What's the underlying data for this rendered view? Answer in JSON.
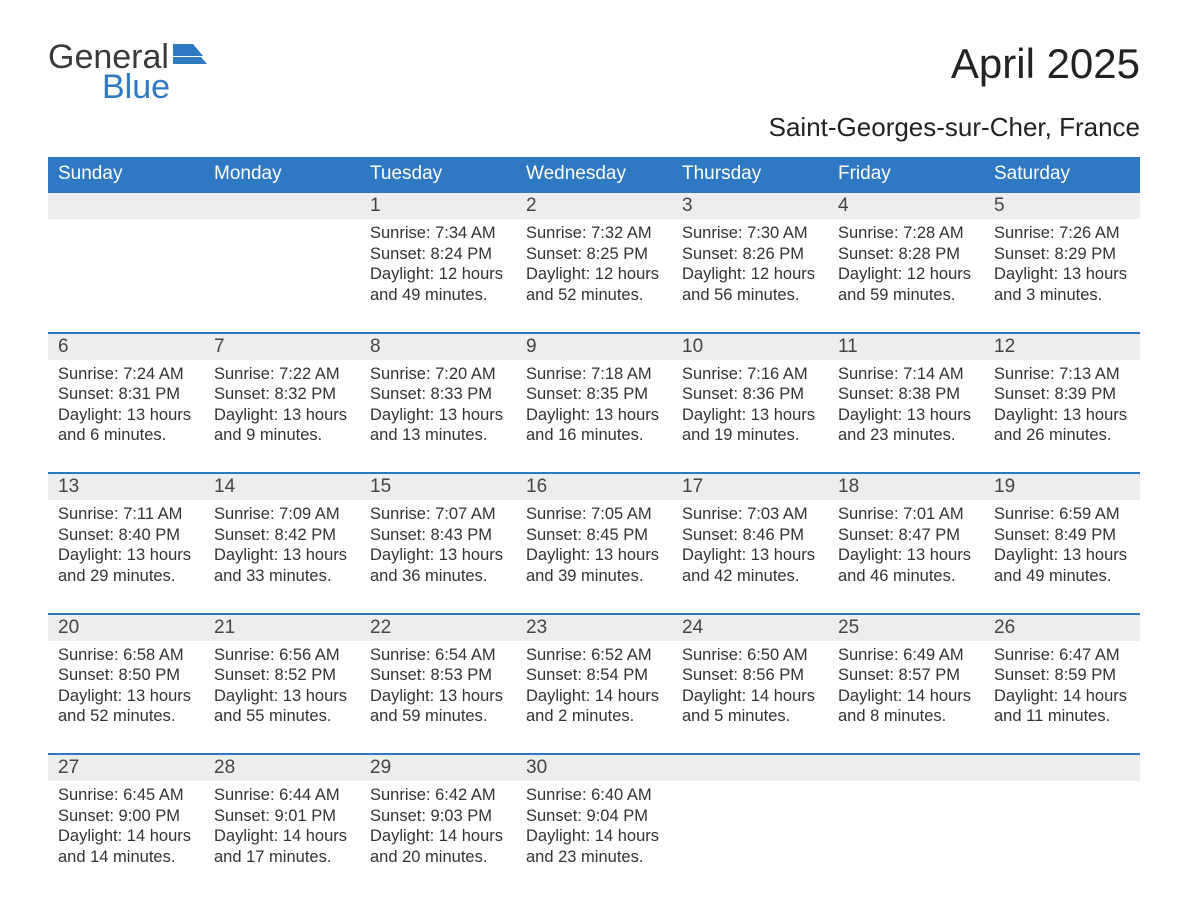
{
  "logo": {
    "word1": "General",
    "word2": "Blue"
  },
  "title": "April 2025",
  "subtitle": "Saint-Georges-sur-Cher, France",
  "colors": {
    "header_bg": "#2f78c3",
    "header_text": "#ffffff",
    "daynum_bg": "#ededed",
    "text": "#333333",
    "logo_gray": "#3a3a3a",
    "logo_blue": "#2f78c3",
    "page_bg": "#ffffff"
  },
  "typography": {
    "title_fontsize": 42,
    "subtitle_fontsize": 26,
    "day_header_fontsize": 19,
    "daynum_fontsize": 19,
    "body_fontsize": 16.5,
    "logo_fontsize": 34
  },
  "layout": {
    "columns": 7,
    "rows": 5,
    "start_day_index": 2
  },
  "day_headers": [
    "Sunday",
    "Monday",
    "Tuesday",
    "Wednesday",
    "Thursday",
    "Friday",
    "Saturday"
  ],
  "days": [
    {
      "n": 1,
      "sunrise": "7:34 AM",
      "sunset": "8:24 PM",
      "daylight": "12 hours and 49 minutes."
    },
    {
      "n": 2,
      "sunrise": "7:32 AM",
      "sunset": "8:25 PM",
      "daylight": "12 hours and 52 minutes."
    },
    {
      "n": 3,
      "sunrise": "7:30 AM",
      "sunset": "8:26 PM",
      "daylight": "12 hours and 56 minutes."
    },
    {
      "n": 4,
      "sunrise": "7:28 AM",
      "sunset": "8:28 PM",
      "daylight": "12 hours and 59 minutes."
    },
    {
      "n": 5,
      "sunrise": "7:26 AM",
      "sunset": "8:29 PM",
      "daylight": "13 hours and 3 minutes."
    },
    {
      "n": 6,
      "sunrise": "7:24 AM",
      "sunset": "8:31 PM",
      "daylight": "13 hours and 6 minutes."
    },
    {
      "n": 7,
      "sunrise": "7:22 AM",
      "sunset": "8:32 PM",
      "daylight": "13 hours and 9 minutes."
    },
    {
      "n": 8,
      "sunrise": "7:20 AM",
      "sunset": "8:33 PM",
      "daylight": "13 hours and 13 minutes."
    },
    {
      "n": 9,
      "sunrise": "7:18 AM",
      "sunset": "8:35 PM",
      "daylight": "13 hours and 16 minutes."
    },
    {
      "n": 10,
      "sunrise": "7:16 AM",
      "sunset": "8:36 PM",
      "daylight": "13 hours and 19 minutes."
    },
    {
      "n": 11,
      "sunrise": "7:14 AM",
      "sunset": "8:38 PM",
      "daylight": "13 hours and 23 minutes."
    },
    {
      "n": 12,
      "sunrise": "7:13 AM",
      "sunset": "8:39 PM",
      "daylight": "13 hours and 26 minutes."
    },
    {
      "n": 13,
      "sunrise": "7:11 AM",
      "sunset": "8:40 PM",
      "daylight": "13 hours and 29 minutes."
    },
    {
      "n": 14,
      "sunrise": "7:09 AM",
      "sunset": "8:42 PM",
      "daylight": "13 hours and 33 minutes."
    },
    {
      "n": 15,
      "sunrise": "7:07 AM",
      "sunset": "8:43 PM",
      "daylight": "13 hours and 36 minutes."
    },
    {
      "n": 16,
      "sunrise": "7:05 AM",
      "sunset": "8:45 PM",
      "daylight": "13 hours and 39 minutes."
    },
    {
      "n": 17,
      "sunrise": "7:03 AM",
      "sunset": "8:46 PM",
      "daylight": "13 hours and 42 minutes."
    },
    {
      "n": 18,
      "sunrise": "7:01 AM",
      "sunset": "8:47 PM",
      "daylight": "13 hours and 46 minutes."
    },
    {
      "n": 19,
      "sunrise": "6:59 AM",
      "sunset": "8:49 PM",
      "daylight": "13 hours and 49 minutes."
    },
    {
      "n": 20,
      "sunrise": "6:58 AM",
      "sunset": "8:50 PM",
      "daylight": "13 hours and 52 minutes."
    },
    {
      "n": 21,
      "sunrise": "6:56 AM",
      "sunset": "8:52 PM",
      "daylight": "13 hours and 55 minutes."
    },
    {
      "n": 22,
      "sunrise": "6:54 AM",
      "sunset": "8:53 PM",
      "daylight": "13 hours and 59 minutes."
    },
    {
      "n": 23,
      "sunrise": "6:52 AM",
      "sunset": "8:54 PM",
      "daylight": "14 hours and 2 minutes."
    },
    {
      "n": 24,
      "sunrise": "6:50 AM",
      "sunset": "8:56 PM",
      "daylight": "14 hours and 5 minutes."
    },
    {
      "n": 25,
      "sunrise": "6:49 AM",
      "sunset": "8:57 PM",
      "daylight": "14 hours and 8 minutes."
    },
    {
      "n": 26,
      "sunrise": "6:47 AM",
      "sunset": "8:59 PM",
      "daylight": "14 hours and 11 minutes."
    },
    {
      "n": 27,
      "sunrise": "6:45 AM",
      "sunset": "9:00 PM",
      "daylight": "14 hours and 14 minutes."
    },
    {
      "n": 28,
      "sunrise": "6:44 AM",
      "sunset": "9:01 PM",
      "daylight": "14 hours and 17 minutes."
    },
    {
      "n": 29,
      "sunrise": "6:42 AM",
      "sunset": "9:03 PM",
      "daylight": "14 hours and 20 minutes."
    },
    {
      "n": 30,
      "sunrise": "6:40 AM",
      "sunset": "9:04 PM",
      "daylight": "14 hours and 23 minutes."
    }
  ],
  "labels": {
    "sunrise": "Sunrise: ",
    "sunset": "Sunset: ",
    "daylight": "Daylight: "
  }
}
